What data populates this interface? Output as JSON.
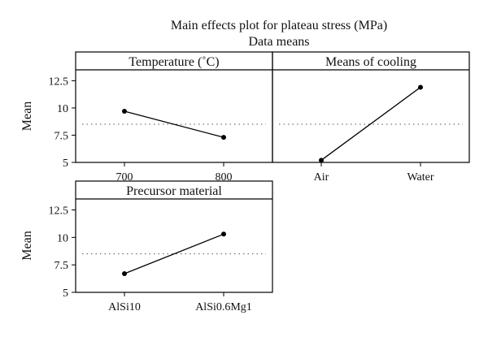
{
  "chart_data": {
    "type": "line",
    "title": "Main effects plot for plateau stress (MPa)",
    "subtitle": "Data means",
    "ylabel": "Mean",
    "ylim": [
      5,
      13.5
    ],
    "yticks": [
      5,
      7.5,
      10,
      12.5
    ],
    "ytick_labels": [
      "5",
      "7.5",
      "10",
      "12.5"
    ],
    "reference_mean": 8.5,
    "grid": false,
    "panels": [
      {
        "title": "Temperature (˚C)",
        "categories": [
          "700",
          "800"
        ],
        "values": [
          9.7,
          7.3
        ]
      },
      {
        "title": "Means of cooling",
        "categories": [
          "Air",
          "Water"
        ],
        "values": [
          5.2,
          11.9
        ]
      },
      {
        "title": "Precursor material",
        "categories": [
          "AlSi10",
          "AlSi0.6Mg1"
        ],
        "values": [
          6.7,
          10.3
        ]
      }
    ]
  }
}
